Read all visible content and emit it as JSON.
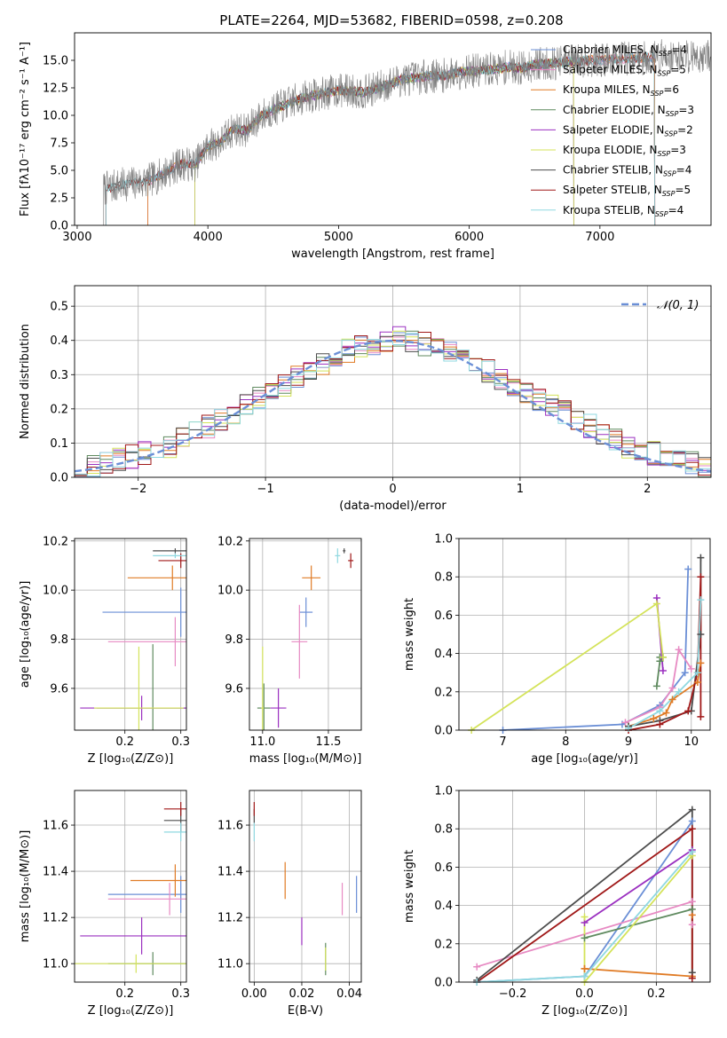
{
  "figure": {
    "title": "PLATE=2264, MJD=53682, FIBERID=0598, z=0.208"
  },
  "colors": {
    "Chabrier MILES": "#6b8fd6",
    "Salpeter MILES": "#e78ac3",
    "Kroupa MILES": "#e07b25",
    "Chabrier ELODIE": "#5f8a5f",
    "Salpeter ELODIE": "#9b30c0",
    "Kroupa ELODIE": "#d4e35a",
    "Chabrier STELIB": "#4d4d4d",
    "Salpeter STELIB": "#a01818",
    "Kroupa STELIB": "#8fd8e0",
    "normal": "#6b8fd6"
  },
  "chart_data": [
    {
      "id": "spectrum",
      "type": "line",
      "title": "PLATE=2264, MJD=53682, FIBERID=0598, z=0.208",
      "xlabel": "wavelength [Angstrom, rest frame]",
      "ylabel": "Flux [fλ10⁻¹⁷ erg cm⁻² s⁻¹ A⁻¹]",
      "xlim": [
        2980,
        7850
      ],
      "ylim": [
        0,
        17.5
      ],
      "xticks": [
        "3000",
        "4000",
        "5000",
        "6000",
        "7000"
      ],
      "yticks": [
        "0.0",
        "2.5",
        "5.0",
        "7.5",
        "10.0",
        "12.5",
        "15.0"
      ],
      "legend_position": "top-right",
      "grid": false,
      "data_x": [
        3200,
        3300,
        3400,
        3500,
        3600,
        3700,
        3800,
        3900,
        4000,
        4100,
        4200,
        4300,
        4400,
        4500,
        4600,
        4700,
        4800,
        4900,
        5000,
        5100,
        5200,
        5300,
        5400,
        5500,
        5600,
        5700,
        5800,
        5900,
        6000,
        6100,
        6200,
        6300,
        6400,
        6500,
        6600,
        6700,
        6800,
        6900,
        7000,
        7100,
        7200,
        7300,
        7400,
        7500
      ],
      "data_y": [
        3.3,
        3.6,
        3.8,
        3.9,
        4.3,
        5.0,
        5.6,
        5.5,
        7.2,
        7.6,
        8.8,
        8.6,
        9.9,
        10.5,
        11.0,
        11.5,
        11.8,
        12.0,
        12.3,
        12.2,
        12.1,
        12.5,
        12.9,
        13.3,
        13.4,
        13.6,
        13.6,
        13.9,
        14.0,
        14.1,
        14.2,
        14.4,
        14.3,
        14.6,
        14.7,
        14.8,
        14.9,
        15.0,
        15.0,
        15.1,
        15.2,
        15.2,
        15.3,
        15.4
      ],
      "series": [
        {
          "name": "Chabrier MILES, N$_{SSP}$=4",
          "label": "Chabrier MILES, N",
          "nssp": "=4",
          "xmin": 3540,
          "xmax": 7420
        },
        {
          "name": "Salpeter MILES, N$_{SSP}$=5",
          "label": "Salpeter MILES, N",
          "nssp": "=5",
          "xmin": 3540,
          "xmax": 7420
        },
        {
          "name": "Kroupa MILES, N$_{SSP}$=6",
          "label": "Kroupa MILES, N",
          "nssp": "=6",
          "xmin": 3540,
          "xmax": 7420
        },
        {
          "name": "Chabrier ELODIE, N$_{SSP}$=3",
          "label": "Chabrier ELODIE, N",
          "nssp": "=3",
          "xmin": 3900,
          "xmax": 6800
        },
        {
          "name": "Salpeter ELODIE, N$_{SSP}$=2",
          "label": "Salpeter ELODIE, N",
          "nssp": "=2",
          "xmin": 3900,
          "xmax": 6800
        },
        {
          "name": "Kroupa ELODIE, N$_{SSP}$=3",
          "label": "Kroupa ELODIE, N",
          "nssp": "=3",
          "xmin": 3900,
          "xmax": 6800
        },
        {
          "name": "Chabrier STELIB, N$_{SSP}$=4",
          "label": "Chabrier STELIB, N",
          "nssp": "=4",
          "xmin": 3220,
          "xmax": 7420
        },
        {
          "name": "Salpeter STELIB, N$_{SSP}$=5",
          "label": "Salpeter STELIB, N",
          "nssp": "=5",
          "xmin": 3220,
          "xmax": 7420
        },
        {
          "name": "Kroupa STELIB, N$_{SSP}$=4",
          "label": "Kroupa STELIB, N",
          "nssp": "=4",
          "xmin": 3220,
          "xmax": 7420
        }
      ]
    },
    {
      "id": "residuals",
      "type": "histogram",
      "xlabel": "(data-model)/error",
      "ylabel": "Normed distribution",
      "xlim": [
        -2.5,
        2.5
      ],
      "ylim": [
        0,
        0.56
      ],
      "xticks": [
        "−2",
        "−1",
        "0",
        "1",
        "2"
      ],
      "yticks": [
        "0.0",
        "0.1",
        "0.2",
        "0.3",
        "0.4",
        "0.5"
      ],
      "grid": true,
      "legend_position": "top-right",
      "legend": "𝒩(0, 1)",
      "bin_start": -2.5,
      "bin_width": 0.1,
      "approx_values": [
        0.02,
        0.03,
        0.04,
        0.05,
        0.06,
        0.07,
        0.08,
        0.09,
        0.11,
        0.13,
        0.15,
        0.17,
        0.19,
        0.21,
        0.23,
        0.25,
        0.27,
        0.29,
        0.31,
        0.33,
        0.35,
        0.37,
        0.38,
        0.39,
        0.4,
        0.41,
        0.4,
        0.39,
        0.38,
        0.37,
        0.35,
        0.33,
        0.31,
        0.29,
        0.27,
        0.25,
        0.23,
        0.21,
        0.19,
        0.17,
        0.15,
        0.13,
        0.11,
        0.09,
        0.08,
        0.07,
        0.06,
        0.05,
        0.04,
        0.03
      ],
      "series": [
        {
          "name": "Chabrier MILES"
        },
        {
          "name": "Salpeter MILES"
        },
        {
          "name": "Kroupa MILES"
        },
        {
          "name": "Chabrier ELODIE"
        },
        {
          "name": "Salpeter ELODIE"
        },
        {
          "name": "Kroupa ELODIE"
        },
        {
          "name": "Chabrier STELIB"
        },
        {
          "name": "Salpeter STELIB"
        },
        {
          "name": "Kroupa STELIB"
        }
      ]
    },
    {
      "id": "age_vs_z",
      "type": "scatter",
      "xlabel": "Z [log₁₀(Z/Z⊙)]",
      "ylabel": "age  [log₁₀(age/yr)]",
      "xlim": [
        0.11,
        0.31
      ],
      "ylim": [
        9.43,
        10.21
      ],
      "xticks": [
        "0.2",
        "0.3"
      ],
      "yticks": [
        "9.6",
        "9.8",
        "10.0",
        "10.2"
      ],
      "grid": true,
      "points": [
        {
          "series": "Chabrier MILES",
          "x": 0.3,
          "y": 9.91,
          "xerr": 0.14,
          "yerr": 0.1
        },
        {
          "series": "Salpeter MILES",
          "x": 0.29,
          "y": 9.79,
          "xerr": 0.12,
          "yerr": 0.1
        },
        {
          "series": "Kroupa MILES",
          "x": 0.285,
          "y": 10.05,
          "xerr": 0.08,
          "yerr": 0.05
        },
        {
          "series": "Chabrier ELODIE",
          "x": 0.25,
          "y": 9.52,
          "xerr": 0.1,
          "yerr": 0.26
        },
        {
          "series": "Salpeter ELODIE",
          "x": 0.23,
          "y": 9.52,
          "xerr": 0.11,
          "yerr": 0.05
        },
        {
          "series": "Kroupa ELODIE",
          "x": 0.225,
          "y": 9.52,
          "xerr": 0.08,
          "yerr": 0.25
        },
        {
          "series": "Chabrier STELIB",
          "x": 0.29,
          "y": 10.16,
          "xerr": 0.04,
          "yerr": 0.01
        },
        {
          "series": "Salpeter STELIB",
          "x": 0.3,
          "y": 10.12,
          "xerr": 0.04,
          "yerr": 0.03
        },
        {
          "series": "Kroupa STELIB",
          "x": 0.29,
          "y": 10.14,
          "xerr": 0.04,
          "yerr": 0.01
        }
      ]
    },
    {
      "id": "age_vs_mass",
      "type": "scatter",
      "xlabel": "mass [log₁₀(M/M⊙)]",
      "ylabel": "",
      "xlim": [
        10.9,
        11.75
      ],
      "ylim": [
        9.43,
        10.21
      ],
      "xticks": [
        "11.0",
        "11.5"
      ],
      "yticks": [
        "9.6",
        "9.8",
        "10.0",
        "10.2"
      ],
      "grid": true,
      "points": [
        {
          "series": "Chabrier MILES",
          "x": 11.33,
          "y": 9.91,
          "xerr": 0.05,
          "yerr": 0.06
        },
        {
          "series": "Salpeter MILES",
          "x": 11.28,
          "y": 9.79,
          "xerr": 0.06,
          "yerr": 0.15
        },
        {
          "series": "Kroupa MILES",
          "x": 11.37,
          "y": 10.05,
          "xerr": 0.07,
          "yerr": 0.05
        },
        {
          "series": "Chabrier ELODIE",
          "x": 11.01,
          "y": 9.52,
          "xerr": 0.05,
          "yerr": 0.1
        },
        {
          "series": "Salpeter ELODIE",
          "x": 11.12,
          "y": 9.52,
          "xerr": 0.06,
          "yerr": 0.08
        },
        {
          "series": "Kroupa ELODIE",
          "x": 11.0,
          "y": 9.52,
          "xerr": 0.01,
          "yerr": 0.25
        },
        {
          "series": "Chabrier STELIB",
          "x": 11.62,
          "y": 10.16,
          "xerr": 0.01,
          "yerr": 0.01
        },
        {
          "series": "Salpeter STELIB",
          "x": 11.67,
          "y": 10.12,
          "xerr": 0.02,
          "yerr": 0.03
        },
        {
          "series": "Kroupa STELIB",
          "x": 11.57,
          "y": 10.14,
          "xerr": 0.02,
          "yerr": 0.03
        }
      ]
    },
    {
      "id": "weight_vs_age",
      "type": "line",
      "xlabel": "age  [log₁₀(age/yr)]",
      "ylabel": "mass weight",
      "xlim": [
        6.3,
        10.3
      ],
      "ylim": [
        0,
        1.0
      ],
      "xticks": [
        "7",
        "8",
        "9",
        "10"
      ],
      "yticks": [
        "0.0",
        "0.2",
        "0.4",
        "0.6",
        "0.8",
        "1.0"
      ],
      "grid": true,
      "series": [
        {
          "name": "Chabrier MILES",
          "x": [
            7.0,
            8.9,
            9.5,
            9.9,
            9.95
          ],
          "y": [
            0.0,
            0.03,
            0.13,
            0.3,
            0.84
          ]
        },
        {
          "name": "Salpeter MILES",
          "x": [
            8.95,
            9.5,
            9.7,
            9.8,
            10.0
          ],
          "y": [
            0.04,
            0.12,
            0.22,
            0.42,
            0.32
          ]
        },
        {
          "name": "Kroupa MILES",
          "x": [
            9.0,
            9.4,
            9.6,
            9.7,
            10.1,
            10.15
          ],
          "y": [
            0.02,
            0.06,
            0.09,
            0.16,
            0.25,
            0.35
          ]
        },
        {
          "name": "Chabrier ELODIE",
          "x": [
            9.45,
            9.5,
            9.55,
            9.5
          ],
          "y": [
            0.23,
            0.36,
            0.38,
            0.38
          ]
        },
        {
          "name": "Salpeter ELODIE",
          "x": [
            9.45,
            9.55
          ],
          "y": [
            0.69,
            0.31
          ]
        },
        {
          "name": "Kroupa ELODIE",
          "x": [
            6.5,
            9.45,
            9.55
          ],
          "y": [
            0.0,
            0.66,
            0.38
          ]
        },
        {
          "name": "Chabrier STELIB",
          "x": [
            9.0,
            9.5,
            10.0,
            10.15,
            10.15
          ],
          "y": [
            0.02,
            0.05,
            0.1,
            0.5,
            0.9
          ]
        },
        {
          "name": "Salpeter STELIB",
          "x": [
            9.0,
            9.5,
            9.95,
            10.1,
            10.15,
            10.15
          ],
          "y": [
            0.0,
            0.03,
            0.1,
            0.3,
            0.8,
            0.07
          ]
        },
        {
          "name": "Kroupa STELIB",
          "x": [
            9.0,
            9.5,
            9.8,
            10.1,
            10.15
          ],
          "y": [
            0.01,
            0.1,
            0.2,
            0.3,
            0.68
          ]
        }
      ]
    },
    {
      "id": "mass_vs_z",
      "type": "scatter",
      "xlabel": "Z [log₁₀(Z/Z⊙)]",
      "ylabel": "mass [log₁₀(M/M⊙)]",
      "xlim": [
        0.11,
        0.31
      ],
      "ylim": [
        10.92,
        11.75
      ],
      "xticks": [
        "0.2",
        "0.3"
      ],
      "yticks": [
        "11.0",
        "11.2",
        "11.4",
        "11.6"
      ],
      "grid": true,
      "points": [
        {
          "series": "Chabrier MILES",
          "x": 0.3,
          "y": 11.3,
          "xerr": 0.13,
          "yerr": 0.08
        },
        {
          "series": "Salpeter MILES",
          "x": 0.28,
          "y": 11.28,
          "xerr": 0.11,
          "yerr": 0.07
        },
        {
          "series": "Kroupa MILES",
          "x": 0.29,
          "y": 11.36,
          "xerr": 0.08,
          "yerr": 0.07
        },
        {
          "series": "Chabrier ELODIE",
          "x": 0.25,
          "y": 11.0,
          "xerr": 0.08,
          "yerr": 0.05
        },
        {
          "series": "Salpeter ELODIE",
          "x": 0.23,
          "y": 11.12,
          "xerr": 0.11,
          "yerr": 0.08
        },
        {
          "series": "Kroupa ELODIE",
          "x": 0.22,
          "y": 11.0,
          "xerr": 0.11,
          "yerr": 0.04
        },
        {
          "series": "Chabrier STELIB",
          "x": 0.3,
          "y": 11.62,
          "xerr": 0.03,
          "yerr": 0.05
        },
        {
          "series": "Salpeter STELIB",
          "x": 0.3,
          "y": 11.67,
          "xerr": 0.03,
          "yerr": 0.03
        },
        {
          "series": "Kroupa STELIB",
          "x": 0.3,
          "y": 11.57,
          "xerr": 0.03,
          "yerr": 0.04
        }
      ]
    },
    {
      "id": "mass_vs_ebv",
      "type": "scatter",
      "xlabel": "E(B-V)",
      "ylabel": "",
      "xlim": [
        -0.002,
        0.045
      ],
      "ylim": [
        10.92,
        11.75
      ],
      "xticks": [
        "0.00",
        "0.02",
        "0.04"
      ],
      "yticks": [
        "11.0",
        "11.2",
        "11.4",
        "11.6"
      ],
      "grid": true,
      "points": [
        {
          "series": "Chabrier MILES",
          "x": 0.043,
          "y": 11.3,
          "yerr": 0.08
        },
        {
          "series": "Salpeter MILES",
          "x": 0.037,
          "y": 11.28,
          "yerr": 0.07
        },
        {
          "series": "Kroupa MILES",
          "x": 0.013,
          "y": 11.36,
          "yerr": 0.08
        },
        {
          "series": "Chabrier ELODIE",
          "x": 0.03,
          "y": 11.02,
          "yerr": 0.07
        },
        {
          "series": "Salpeter ELODIE",
          "x": 0.02,
          "y": 11.14,
          "yerr": 0.06
        },
        {
          "series": "Kroupa ELODIE",
          "x": 0.03,
          "y": 11.02,
          "yerr": 0.05
        },
        {
          "series": "Chabrier STELIB",
          "x": 0.0,
          "y": 11.64,
          "yerr": 0.03
        },
        {
          "series": "Salpeter STELIB",
          "x": 0.0,
          "y": 11.67,
          "yerr": 0.03
        },
        {
          "series": "Kroupa STELIB",
          "x": 0.0,
          "y": 11.57,
          "yerr": 0.04
        }
      ]
    },
    {
      "id": "weight_vs_z",
      "type": "line",
      "xlabel": "Z [log₁₀(Z/Z⊙)]",
      "ylabel": "mass weight",
      "xlim": [
        -0.35,
        0.35
      ],
      "ylim": [
        0,
        1.0
      ],
      "xticks": [
        "−0.2",
        "0.0",
        "0.2"
      ],
      "yticks": [
        "0.0",
        "0.2",
        "0.4",
        "0.6",
        "0.8",
        "1.0"
      ],
      "grid": true,
      "series": [
        {
          "name": "Chabrier MILES",
          "x": [
            -0.3,
            0.0,
            0.3
          ],
          "y": [
            0.0,
            0.03,
            0.84
          ]
        },
        {
          "name": "Salpeter MILES",
          "x": [
            -0.3,
            0.3,
            0.3
          ],
          "y": [
            0.08,
            0.42,
            0.3
          ]
        },
        {
          "name": "Kroupa MILES",
          "x": [
            0.0,
            0.0,
            0.3,
            0.3
          ],
          "y": [
            0.07,
            0.07,
            0.03,
            0.35
          ]
        },
        {
          "name": "Chabrier ELODIE",
          "x": [
            0.0,
            0.3
          ],
          "y": [
            0.23,
            0.38
          ]
        },
        {
          "name": "Salpeter ELODIE",
          "x": [
            0.0,
            0.3
          ],
          "y": [
            0.31,
            0.69
          ]
        },
        {
          "name": "Kroupa ELODIE",
          "x": [
            0.0,
            0.0,
            0.3
          ],
          "y": [
            0.34,
            0.0,
            0.66
          ]
        },
        {
          "name": "Chabrier STELIB",
          "x": [
            -0.3,
            0.3,
            0.3
          ],
          "y": [
            0.01,
            0.9,
            0.05
          ]
        },
        {
          "name": "Salpeter STELIB",
          "x": [
            -0.3,
            0.3,
            0.3
          ],
          "y": [
            0.0,
            0.8,
            0.02
          ]
        },
        {
          "name": "Kroupa STELIB",
          "x": [
            -0.3,
            0.0,
            0.3
          ],
          "y": [
            0.0,
            0.03,
            0.68
          ]
        }
      ]
    }
  ]
}
